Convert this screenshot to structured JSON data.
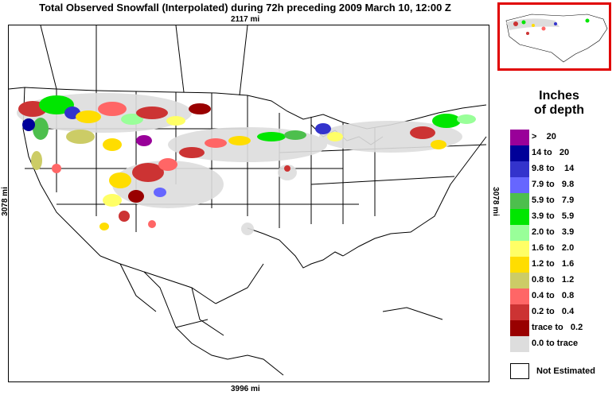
{
  "title": "Total Observed Snowfall (Interpolated) during 72h preceding 2009 March 10, 12:00 Z",
  "scale": {
    "top": "2117 mi",
    "bottom": "3996 mi",
    "left": "3078 mi",
    "right": "3078 mi"
  },
  "legend": {
    "title_line1": "Inches",
    "title_line2": "of depth",
    "items": [
      {
        "label": ">    20",
        "color": "#990099"
      },
      {
        "label": "14 to   20",
        "color": "#000099"
      },
      {
        "label": "9.8 to    14",
        "color": "#3333cc"
      },
      {
        "label": "7.9 to   9.8",
        "color": "#6666ff"
      },
      {
        "label": "5.9 to   7.9",
        "color": "#4dbf4d"
      },
      {
        "label": "3.9 to   5.9",
        "color": "#00e600"
      },
      {
        "label": "2.0 to   3.9",
        "color": "#99ff99"
      },
      {
        "label": "1.6 to   2.0",
        "color": "#ffff66"
      },
      {
        "label": "1.2 to   1.6",
        "color": "#ffdd00"
      },
      {
        "label": "0.8 to   1.2",
        "color": "#cccc66"
      },
      {
        "label": "0.4 to   0.8",
        "color": "#ff6666"
      },
      {
        "label": "0.2 to   0.4",
        "color": "#cc3333"
      },
      {
        "label": "trace to   0.2",
        "color": "#990000"
      },
      {
        "label": "0.0 to trace",
        "color": "#dddddd"
      }
    ],
    "not_estimated": "Not Estimated"
  },
  "colors": {
    "inset_border": "#e00000",
    "map_lines": "#000000"
  }
}
